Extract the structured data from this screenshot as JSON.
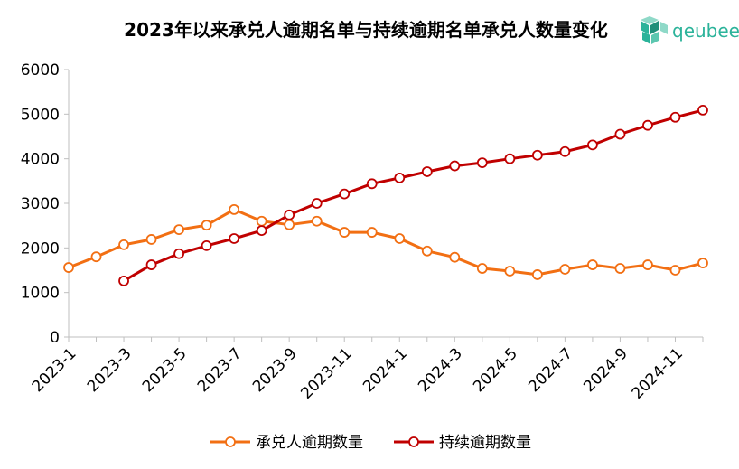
{
  "chart_data": {
    "type": "line",
    "title": "2023年以来承兑人逾期名单与持续逾期名单承兑人数量变化",
    "xlabel": "",
    "ylabel": "",
    "ylim": [
      0,
      6000
    ],
    "yticks": [
      0,
      1000,
      2000,
      3000,
      4000,
      5000,
      6000
    ],
    "categories": [
      "2023-1",
      "2023-2",
      "2023-3",
      "2023-4",
      "2023-5",
      "2023-6",
      "2023-7",
      "2023-8",
      "2023-9",
      "2023-10",
      "2023-11",
      "2023-12",
      "2024-1",
      "2024-2",
      "2024-3",
      "2024-4",
      "2024-5",
      "2024-6",
      "2024-7",
      "2024-8",
      "2024-9",
      "2024-10",
      "2024-11",
      "2024-12"
    ],
    "x_tick_labels": [
      "2023-1",
      "2023-3",
      "2023-5",
      "2023-7",
      "2023-9",
      "2023-11",
      "2024-1",
      "2024-3",
      "2024-5",
      "2024-7",
      "2024-9",
      "2024-11"
    ],
    "series": [
      {
        "name": "承兑人逾期数量",
        "color": "#f26f13",
        "values": [
          1560,
          1800,
          2070,
          2190,
          2410,
          2510,
          2860,
          2600,
          2520,
          2600,
          2350,
          2350,
          2210,
          1930,
          1790,
          1540,
          1480,
          1400,
          1520,
          1620,
          1540,
          1620,
          1500,
          1660
        ]
      },
      {
        "name": "持续逾期数量",
        "color": "#c00000",
        "values": [
          null,
          null,
          1260,
          1620,
          1870,
          2050,
          2210,
          2390,
          2740,
          3000,
          3210,
          3440,
          3570,
          3710,
          3840,
          3910,
          4000,
          4080,
          4160,
          4310,
          4550,
          4750,
          4930,
          5090
        ]
      }
    ],
    "legend_position": "bottom",
    "grid": false
  },
  "brand": {
    "name": "qeubee",
    "icon": "cube-logo-icon",
    "color": "#2bb39a"
  }
}
